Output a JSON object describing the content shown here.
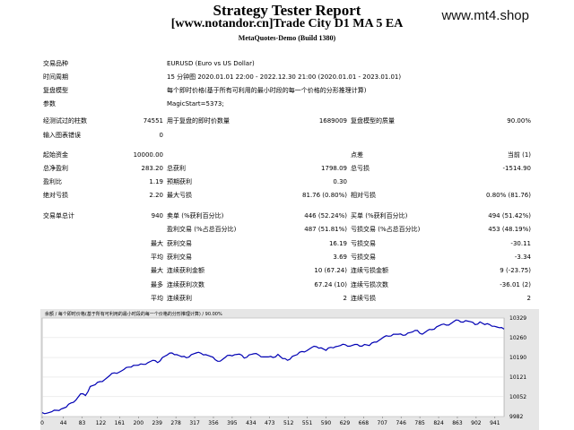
{
  "header": {
    "title": "Strategy Tester Report",
    "subtitle": "[www.notandor.cn]Trade City D1 MA 5 EA",
    "build": "MetaQuotes-Demo (Build 1380)",
    "site": "www.mt4.shop"
  },
  "info": [
    {
      "label": "交易品种",
      "value": "EURUSD (Euro vs US Dollar)"
    },
    {
      "label": "时间周期",
      "value": "15 分钟图 2020.01.01 22:00 - 2022.12.30 21:00 (2020.01.01 - 2023.01.01)"
    },
    {
      "label": "复盘模型",
      "value": "每个即时价格(基于所有可利用的最小时段的每一个价格的分形推理计算)"
    },
    {
      "label": "参数",
      "value": "MagicStart=5373;"
    }
  ],
  "stats1": {
    "ticks_label": "经测试过的柱数",
    "ticks_value": "74551",
    "model_ticks_label": "用于复盘的即时价数量",
    "model_ticks_value": "1689009",
    "quality_label": "复盘模型的质量",
    "quality_value": "90.00%",
    "errors_label": "输入图表错误",
    "errors_value": "0"
  },
  "stats2": {
    "deposit_label": "起始资金",
    "deposit_value": "10000.00",
    "spread_label": "点差",
    "spread_value": "当前 (1)",
    "net_label": "总净盈利",
    "net_value": "283.20",
    "gross_profit_label": "总获利",
    "gross_profit_value": "1798.09",
    "gross_loss_label": "总亏损",
    "gross_loss_value": "-1514.90",
    "pf_label": "盈利比",
    "pf_value": "1.19",
    "ep_label": "预期获利",
    "ep_value": "0.30",
    "abs_dd_label": "绝对亏损",
    "abs_dd_value": "2.20",
    "max_dd_label": "最大亏损",
    "max_dd_value": "81.76 (0.80%)",
    "rel_dd_label": "相对亏损",
    "rel_dd_value": "0.80% (81.76)"
  },
  "trades": {
    "total_label": "交易单总计",
    "total_value": "940",
    "short_label": "卖单 (%获利百分比)",
    "short_value": "446 (52.24%)",
    "long_label": "买单 (%获利百分比)",
    "long_value": "494 (51.42%)",
    "profit_trades_label": "盈利交易 (%占总百分比)",
    "profit_trades_value": "487 (51.81%)",
    "loss_trades_label": "亏损交易 (%占总百分比)",
    "loss_trades_value": "453 (48.19%)",
    "largest_label": "最大",
    "largest_profit_label": "获利交易",
    "largest_profit_value": "16.19",
    "largest_loss_label": "亏损交易",
    "largest_loss_value": "-30.11",
    "average_label": "平均",
    "average_profit_label": "获利交易",
    "average_profit_value": "3.69",
    "average_loss_label": "亏损交易",
    "average_loss_value": "-3.34",
    "max_label": "最大",
    "max_cons_wins_label": "连续获利金额",
    "max_cons_wins_value": "10 (67.24)",
    "max_cons_losses_label": "连续亏损金额",
    "max_cons_losses_value": "9 (-23.75)",
    "maximal_label": "最多",
    "maximal_cons_profit_label": "连续获利次数",
    "maximal_cons_profit_value": "67.24 (10)",
    "maximal_cons_loss_label": "连续亏损次数",
    "maximal_cons_loss_value": "-36.01 (2)",
    "avg_cons_label": "平均",
    "avg_cons_wins_label": "连续获利",
    "avg_cons_wins_value": "2",
    "avg_cons_losses_label": "连续亏损",
    "avg_cons_losses_value": "2"
  },
  "chart_data": {
    "type": "line",
    "caption": "余额 / 每个即时价格(基于所有可利用的最小时段的每一个价格的分形推理计算) / 90.00%",
    "x_ticks": [
      "0",
      "44",
      "83",
      "122",
      "161",
      "200",
      "239",
      "278",
      "317",
      "356",
      "395",
      "434",
      "473",
      "512",
      "551",
      "590",
      "629",
      "668",
      "707",
      "746",
      "785",
      "824",
      "863",
      "902",
      "941"
    ],
    "y_ticks": [
      "10329",
      "10260",
      "10190",
      "10121",
      "10052",
      "9982"
    ],
    "ylim": [
      9982,
      10329
    ],
    "xlim": [
      0,
      960
    ],
    "line_color": "#0000b4",
    "x": [
      0,
      10,
      20,
      30,
      40,
      50,
      60,
      70,
      80,
      90,
      100,
      110,
      120,
      130,
      140,
      150,
      160,
      170,
      180,
      190,
      200,
      210,
      220,
      230,
      240,
      250,
      260,
      270,
      280,
      290,
      300,
      310,
      320,
      330,
      340,
      350,
      360,
      370,
      380,
      390,
      400,
      410,
      420,
      430,
      440,
      450,
      460,
      470,
      480,
      490,
      500,
      510,
      520,
      530,
      540,
      550,
      560,
      570,
      580,
      590,
      600,
      610,
      620,
      630,
      640,
      650,
      660,
      670,
      680,
      690,
      700,
      710,
      720,
      730,
      740,
      750,
      760,
      770,
      780,
      790,
      800,
      810,
      820,
      830,
      840,
      850,
      860,
      870,
      880,
      890,
      900,
      910,
      920,
      930,
      940,
      950,
      960
    ],
    "values": [
      9996,
      9994,
      9999,
      10004,
      10009,
      10015,
      10030,
      10040,
      10062,
      10056,
      10088,
      10094,
      10105,
      10112,
      10126,
      10136,
      10138,
      10148,
      10156,
      10162,
      10163,
      10166,
      10172,
      10180,
      10172,
      10190,
      10199,
      10206,
      10200,
      10193,
      10189,
      10200,
      10206,
      10205,
      10200,
      10194,
      10182,
      10177,
      10190,
      10198,
      10200,
      10202,
      10188,
      10199,
      10203,
      10199,
      10192,
      10192,
      10190,
      10201,
      10186,
      10180,
      10194,
      10200,
      10211,
      10214,
      10225,
      10228,
      10224,
      10215,
      10226,
      10228,
      10232,
      10235,
      10230,
      10236,
      10230,
      10236,
      10232,
      10244,
      10250,
      10262,
      10265,
      10272,
      10272,
      10268,
      10276,
      10280,
      10285,
      10272,
      10284,
      10288,
      10298,
      10306,
      10304,
      10310,
      10322,
      10315,
      10320,
      10316,
      10306,
      10315,
      10306,
      10306,
      10300,
      10295,
      10290
    ]
  }
}
